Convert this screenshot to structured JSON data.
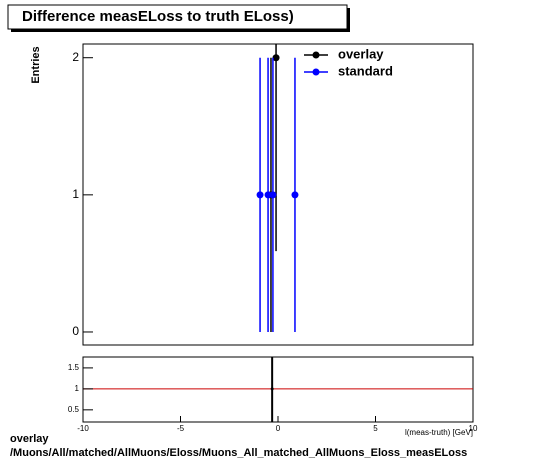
{
  "chart_data": [
    {
      "type": "errorbar",
      "title": "Difference measELoss to truth ELoss)",
      "y_label": "Entries",
      "xlim": [
        -10,
        10
      ],
      "ylim": [
        -0.095,
        2.1
      ],
      "yticks": [
        0,
        1,
        2
      ],
      "series": [
        {
          "name": "overlay",
          "color": "#000000",
          "x": [
            -0.36,
            -0.1
          ],
          "values": [
            1,
            2
          ],
          "errors": [
            1,
            1.41
          ]
        },
        {
          "name": "standard",
          "color": "#0000ff",
          "x": [
            -0.92,
            -0.51,
            -0.26,
            0.87
          ],
          "values": [
            1,
            1,
            1,
            1
          ],
          "errors": [
            1,
            1,
            1,
            1
          ]
        }
      ]
    },
    {
      "type": "ratio",
      "x_label": "l(meas-truth) [GeV]",
      "xlim": [
        -10,
        10
      ],
      "xticks": [
        -10,
        -5,
        0,
        5,
        10
      ],
      "ylim": [
        0.21,
        1.76
      ],
      "yticks": [
        0.5,
        1,
        1.5
      ],
      "reference": 1,
      "reference_color": "#cc0000",
      "series": [
        {
          "color": "#000000",
          "x": [
            -0.3
          ],
          "values": [
            1
          ],
          "errors": [
            2
          ]
        }
      ]
    }
  ],
  "footer": [
    "overlay",
    "/Muons/All/matched/AllMuons/Eloss/Muons_All_matched_AllMuons_Eloss_measELoss"
  ]
}
